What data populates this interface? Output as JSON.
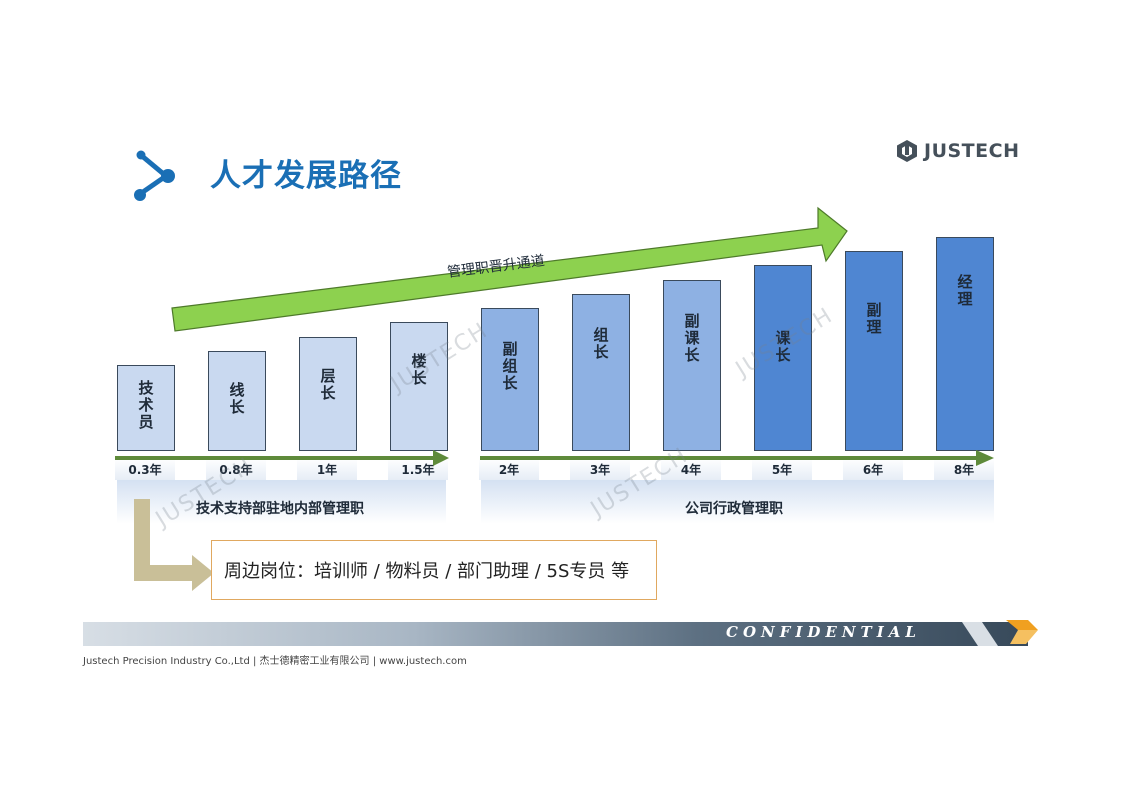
{
  "title": "人才发展路径",
  "logo_text": "JUSTECH",
  "arrow_label": "管理职晋升通道",
  "levels": [
    {
      "label": "技术员",
      "year": "0.3年",
      "color": "#c9d9f0"
    },
    {
      "label": "线长",
      "year": "0.8年",
      "color": "#c9d9f0"
    },
    {
      "label": "层长",
      "year": "1年",
      "color": "#c9d9f0"
    },
    {
      "label": "楼长",
      "year": "1.5年",
      "color": "#c9d9f0"
    },
    {
      "label": "副组长",
      "year": "2年",
      "color": "#8eb1e3"
    },
    {
      "label": "组长",
      "year": "3年",
      "color": "#8eb1e3"
    },
    {
      "label": "副课长",
      "year": "4年",
      "color": "#8eb1e3"
    },
    {
      "label": "课长",
      "year": "5年",
      "color": "#4f86d2"
    },
    {
      "label": "副理",
      "year": "6年",
      "color": "#4f86d2"
    },
    {
      "label": "经理",
      "year": "8年",
      "color": "#4f86d2"
    }
  ],
  "categories": {
    "left": "技术支持部驻地内部管理职",
    "right": "公司行政管理职"
  },
  "peripheral_roles": "周边岗位：培训师 / 物料员 / 部门助理 / 5S专员 等",
  "confidential": "CONFIDENTIAL",
  "footer": "Justech Precision Industry Co.,Ltd  |  杰士德精密工业有限公司  |  www.justech.com",
  "watermark": "JUSTECH",
  "colors": {
    "title": "#1a6fb5",
    "arrow_green": "#8dd14f",
    "timeline_green": "#5e8a3a",
    "l_arrow": "#c9bf98"
  }
}
